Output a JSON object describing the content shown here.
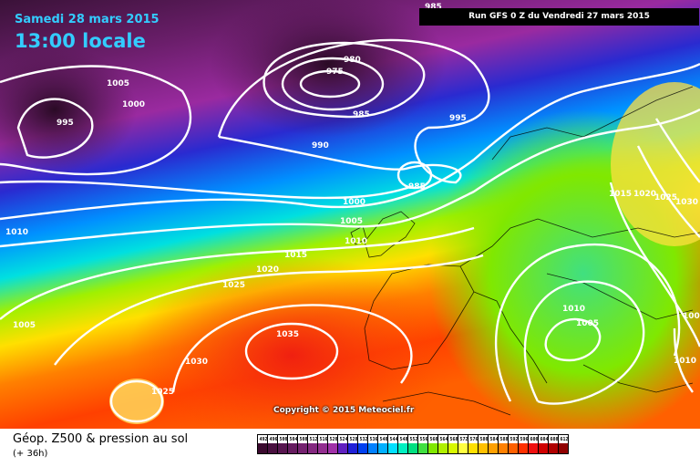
{
  "header": {
    "date": "Samedi 28 mars 2015",
    "time": "13:00 locale",
    "run": "Run GFS 0 Z du Vendredi 27 mars 2015"
  },
  "copyright": "Copyright © 2015 Meteociel.fr",
  "legend": {
    "title": "Géop. Z500 & pression au sol",
    "subtitle": "(+ 36h)",
    "scale": [
      {
        "label": "492",
        "color": "#3b0a2f"
      },
      {
        "label": "496",
        "color": "#4a1040"
      },
      {
        "label": "500",
        "color": "#581650"
      },
      {
        "label": "504",
        "color": "#661c60"
      },
      {
        "label": "508",
        "color": "#752270"
      },
      {
        "label": "512",
        "color": "#842880"
      },
      {
        "label": "516",
        "color": "#932e90"
      },
      {
        "label": "520",
        "color": "#a030a8"
      },
      {
        "label": "524",
        "color": "#6020c0"
      },
      {
        "label": "528",
        "color": "#2020d8"
      },
      {
        "label": "532",
        "color": "#0040f0"
      },
      {
        "label": "536",
        "color": "#0080ff"
      },
      {
        "label": "540",
        "color": "#00b0ff"
      },
      {
        "label": "544",
        "color": "#00e0ff"
      },
      {
        "label": "548",
        "color": "#00f0c0"
      },
      {
        "label": "552",
        "color": "#00e080"
      },
      {
        "label": "556",
        "color": "#40e040"
      },
      {
        "label": "560",
        "color": "#80e800"
      },
      {
        "label": "564",
        "color": "#b0f000"
      },
      {
        "label": "568",
        "color": "#d8f800"
      },
      {
        "label": "572",
        "color": "#ffff40"
      },
      {
        "label": "576",
        "color": "#ffe000"
      },
      {
        "label": "580",
        "color": "#ffc000"
      },
      {
        "label": "584",
        "color": "#ffa000"
      },
      {
        "label": "588",
        "color": "#ff8000"
      },
      {
        "label": "592",
        "color": "#ff6000"
      },
      {
        "label": "596",
        "color": "#ff3000"
      },
      {
        "label": "600",
        "color": "#f01010"
      },
      {
        "label": "604",
        "color": "#d00000"
      },
      {
        "label": "608",
        "color": "#b00000"
      },
      {
        "label": "612",
        "color": "#900000"
      }
    ]
  },
  "isobar_labels": [
    {
      "text": "985"
    },
    {
      "text": "1005"
    },
    {
      "text": "1000"
    },
    {
      "text": "995"
    },
    {
      "text": "980"
    },
    {
      "text": "975"
    },
    {
      "text": "985"
    },
    {
      "text": "990"
    },
    {
      "text": "995"
    },
    {
      "text": "985"
    },
    {
      "text": "1000"
    },
    {
      "text": "1005"
    },
    {
      "text": "1010"
    },
    {
      "text": "1010"
    },
    {
      "text": "1015"
    },
    {
      "text": "1020"
    },
    {
      "text": "1025"
    },
    {
      "text": "1005"
    },
    {
      "text": "1035"
    },
    {
      "text": "1030"
    },
    {
      "text": "1025"
    },
    {
      "text": "1015"
    },
    {
      "text": "1020"
    },
    {
      "text": "1025"
    },
    {
      "text": "1030"
    },
    {
      "text": "1010"
    },
    {
      "text": "1005"
    },
    {
      "text": "1010"
    },
    {
      "text": "1000"
    }
  ]
}
